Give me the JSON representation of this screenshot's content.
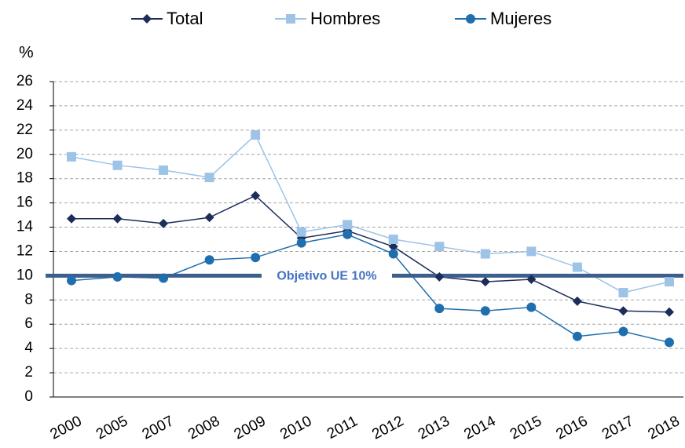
{
  "chart_data": {
    "type": "line",
    "y_unit_label": "%",
    "categories": [
      "2000",
      "2005",
      "2007",
      "2008",
      "2009",
      "2010",
      "2011",
      "2012",
      "2013",
      "2014",
      "2015",
      "2016",
      "2017",
      "2018"
    ],
    "series": [
      {
        "name": "Total",
        "color": "#1c2d5a",
        "marker": "diamond",
        "values": [
          14.7,
          14.7,
          14.3,
          14.8,
          16.6,
          13.1,
          13.7,
          12.4,
          9.9,
          9.5,
          9.7,
          7.9,
          7.1,
          7.0
        ]
      },
      {
        "name": "Hombres",
        "color": "#9dc3e6",
        "marker": "square",
        "values": [
          19.8,
          19.1,
          18.7,
          18.1,
          21.6,
          13.6,
          14.2,
          13.0,
          12.4,
          11.8,
          12.0,
          10.7,
          8.6,
          9.5
        ]
      },
      {
        "name": "Mujeres",
        "color": "#1f6fae",
        "marker": "circle",
        "values": [
          9.6,
          9.9,
          9.8,
          11.3,
          11.5,
          12.7,
          13.4,
          11.8,
          7.3,
          7.1,
          7.4,
          5.0,
          5.4,
          4.5
        ]
      }
    ],
    "target": {
      "value": 10,
      "label": "Objetivo UE 10%",
      "color": "#3d5f8c"
    },
    "ylim": [
      0,
      26
    ],
    "yticks": [
      0,
      2,
      4,
      6,
      8,
      10,
      12,
      14,
      16,
      18,
      20,
      22,
      24,
      26
    ],
    "grid": true,
    "legend": "top"
  }
}
